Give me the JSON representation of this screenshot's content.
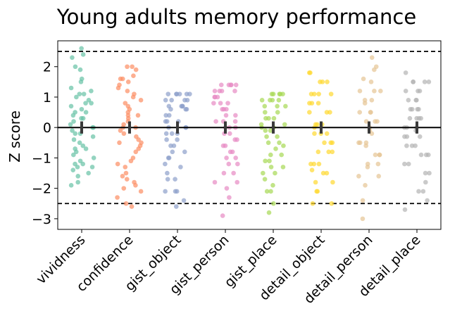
{
  "chart_data": {
    "type": "scatter",
    "title": "Young adults memory performance",
    "xlabel": "",
    "ylabel": "Z score",
    "categories": [
      "vividness",
      "confidence",
      "gist_object",
      "gist_person",
      "gist_place",
      "detail_object",
      "detail_person",
      "detail_place"
    ],
    "yticks": [
      2,
      1,
      0,
      -1,
      -2,
      -3
    ],
    "ylim": [
      -3.35,
      2.85
    ],
    "grid": false,
    "legend": "none",
    "reference_lines": {
      "zero": 0,
      "upper_threshold": 2.5,
      "lower_threshold": -2.5
    },
    "means": [
      0,
      0,
      0,
      0,
      0,
      0,
      0,
      0
    ],
    "ci_half_width": [
      0.2,
      0.2,
      0.2,
      0.2,
      0.2,
      0.2,
      0.2,
      0.2
    ],
    "colors": [
      "#66c2a5",
      "#fc8d62",
      "#8da0cb",
      "#e78ac3",
      "#a6d854",
      "#ffd92f",
      "#e5c494",
      "#b3b3b3"
    ],
    "series": [
      {
        "values": [
          2.6,
          2.4,
          2.3,
          2.0,
          1.9,
          1.6,
          1.3,
          1.2,
          1.1,
          1.1,
          1.0,
          0.9,
          0.8,
          0.7,
          0.6,
          0.5,
          0.5,
          0.4,
          0.3,
          0.3,
          0.2,
          0.1,
          0.0,
          0.0,
          -0.1,
          -0.2,
          -0.3,
          -0.4,
          -0.5,
          -0.6,
          -0.7,
          -0.8,
          -0.9,
          -1.0,
          -1.1,
          -1.2,
          -1.2,
          -1.3,
          -1.4,
          -1.5,
          -1.6,
          -1.8,
          -1.9,
          -1.3,
          -0.2,
          0.8,
          1.5,
          -0.7
        ]
      },
      {
        "values": [
          2.0,
          2.0,
          1.9,
          1.7,
          1.6,
          1.6,
          1.5,
          1.4,
          1.3,
          1.2,
          1.1,
          1.0,
          0.9,
          0.8,
          0.7,
          0.6,
          0.5,
          0.4,
          0.3,
          0.2,
          0.1,
          0.0,
          0.0,
          -0.1,
          -0.2,
          -0.3,
          -0.4,
          -0.5,
          -0.6,
          -0.7,
          -0.8,
          -1.0,
          -1.1,
          -1.2,
          -1.3,
          -1.5,
          -1.6,
          -1.7,
          -1.8,
          -1.9,
          -2.0,
          -2.1,
          -2.3,
          -2.5,
          -2.6,
          0.4,
          -0.5
        ]
      },
      {
        "values": [
          1.1,
          1.1,
          1.1,
          1.1,
          1.1,
          1.1,
          0.9,
          0.9,
          0.9,
          0.9,
          0.7,
          0.7,
          0.7,
          0.7,
          0.6,
          0.6,
          0.6,
          0.4,
          0.4,
          0.2,
          0.2,
          0.2,
          0.0,
          0.0,
          0.0,
          -0.2,
          -0.2,
          -0.2,
          -0.4,
          -0.4,
          -0.6,
          -0.6,
          -0.8,
          -0.8,
          -1.0,
          -1.0,
          -1.2,
          -1.3,
          -1.5,
          -1.7,
          -1.7,
          -2.1,
          -2.1,
          -2.1,
          -2.4,
          -2.6
        ]
      },
      {
        "values": [
          1.4,
          1.4,
          1.4,
          1.4,
          1.4,
          1.2,
          1.2,
          1.2,
          1.2,
          1.0,
          1.0,
          1.0,
          0.8,
          0.8,
          0.8,
          0.6,
          0.6,
          0.6,
          0.4,
          0.4,
          0.2,
          0.2,
          0.2,
          0.0,
          0.0,
          0.0,
          -0.2,
          -0.2,
          -0.4,
          -0.4,
          -0.6,
          -0.6,
          -0.8,
          -0.8,
          -1.0,
          -1.0,
          -1.2,
          -1.2,
          -1.5,
          -1.5,
          -1.8,
          -1.8,
          -2.0,
          -2.3,
          -2.9
        ]
      },
      {
        "values": [
          1.1,
          1.1,
          1.1,
          1.1,
          1.1,
          0.9,
          0.9,
          0.9,
          0.9,
          0.7,
          0.7,
          0.7,
          0.5,
          0.5,
          0.3,
          0.3,
          0.3,
          0.1,
          0.1,
          0.0,
          0.0,
          -0.1,
          -0.1,
          -0.3,
          -0.3,
          -0.5,
          -0.5,
          -0.6,
          -0.7,
          -0.9,
          -0.9,
          -1.1,
          -1.1,
          -1.3,
          -1.3,
          -1.5,
          -1.5,
          -1.7,
          -1.9,
          -2.1,
          -2.1,
          -2.5,
          -2.8
        ]
      },
      {
        "values": [
          1.8,
          1.8,
          1.5,
          1.5,
          1.5,
          1.1,
          1.1,
          1.1,
          1.1,
          0.8,
          0.8,
          0.8,
          0.5,
          0.5,
          0.5,
          0.1,
          0.1,
          0.1,
          0.0,
          -0.2,
          -0.2,
          -0.2,
          -0.5,
          -0.5,
          -0.5,
          -0.8,
          -0.8,
          -0.8,
          -1.2,
          -1.2,
          -1.2,
          -1.4,
          -1.5,
          -1.5,
          -1.8,
          -1.8,
          -2.1,
          -2.1,
          -2.5,
          -2.5
        ]
      },
      {
        "values": [
          2.3,
          2.0,
          1.9,
          1.6,
          1.5,
          1.2,
          1.2,
          1.2,
          0.9,
          0.9,
          0.8,
          0.5,
          0.5,
          0.5,
          0.2,
          0.2,
          0.2,
          0.0,
          -0.1,
          -0.2,
          -0.5,
          -0.5,
          -0.5,
          -0.6,
          -0.9,
          -0.9,
          -0.9,
          -1.2,
          -1.2,
          -1.3,
          -1.6,
          -1.6,
          -1.9,
          -2.4,
          -3.0
        ]
      },
      {
        "values": [
          1.8,
          1.5,
          1.5,
          1.5,
          1.5,
          1.2,
          1.2,
          1.2,
          0.9,
          0.9,
          0.9,
          0.6,
          0.6,
          0.6,
          0.6,
          0.3,
          0.3,
          0.3,
          0.3,
          0.0,
          0.0,
          0.0,
          -0.1,
          -0.3,
          -0.3,
          -0.3,
          -0.6,
          -0.6,
          -0.6,
          -0.9,
          -0.9,
          -0.9,
          -1.2,
          -1.2,
          -1.5,
          -1.5,
          -1.8,
          -2.1,
          -2.1,
          -2.4,
          -2.7
        ]
      }
    ]
  }
}
